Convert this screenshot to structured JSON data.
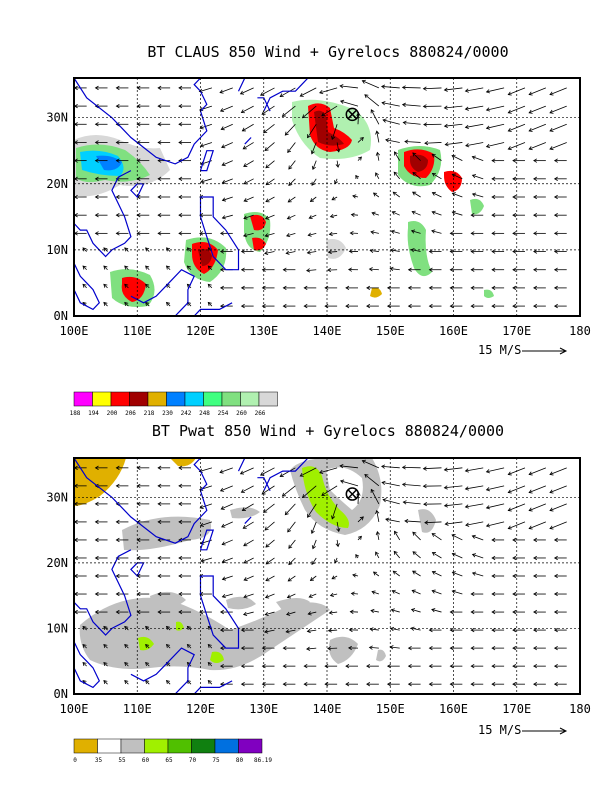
{
  "panels": [
    {
      "id": "claus",
      "title": "BT CLAUS 850 Wind + Gyrelocs 880824/0000",
      "x_ticks": [
        "100E",
        "110E",
        "120E",
        "130E",
        "140E",
        "150E",
        "160E",
        "170E",
        "180"
      ],
      "y_ticks": [
        "0N",
        "10N",
        "20N",
        "30N"
      ],
      "vector_label": "15 M/S",
      "colorbar": {
        "labels": [
          "188",
          "194",
          "200",
          "206",
          "218",
          "230",
          "242",
          "248",
          "254",
          "260",
          "266"
        ],
        "colors": [
          "#ff00ff",
          "#ffff00",
          "#ff0000",
          "#a00000",
          "#e0b000",
          "#0080ff",
          "#00d0ff",
          "#40ff80",
          "#80e080",
          "#b0f0b0",
          "#d8d8d8"
        ]
      }
    },
    {
      "id": "pwat",
      "title": "BT Pwat 850 Wind + Gyrelocs 880824/0000",
      "x_ticks": [
        "100E",
        "110E",
        "120E",
        "130E",
        "140E",
        "150E",
        "160E",
        "170E",
        "180"
      ],
      "y_ticks": [
        "0N",
        "10N",
        "20N",
        "30N"
      ],
      "vector_label": "15 M/S",
      "colorbar": {
        "labels": [
          "0",
          "35",
          "55",
          "60",
          "65",
          "70",
          "75",
          "80",
          "86.19"
        ],
        "colors": [
          "#e0b000",
          "#ffffff",
          "#c0c0c0",
          "#a0f000",
          "#50c000",
          "#108010",
          "#0070e0",
          "#8000c0"
        ]
      }
    }
  ],
  "gyre_marker": {
    "lon": 144,
    "lat": 30.5
  }
}
